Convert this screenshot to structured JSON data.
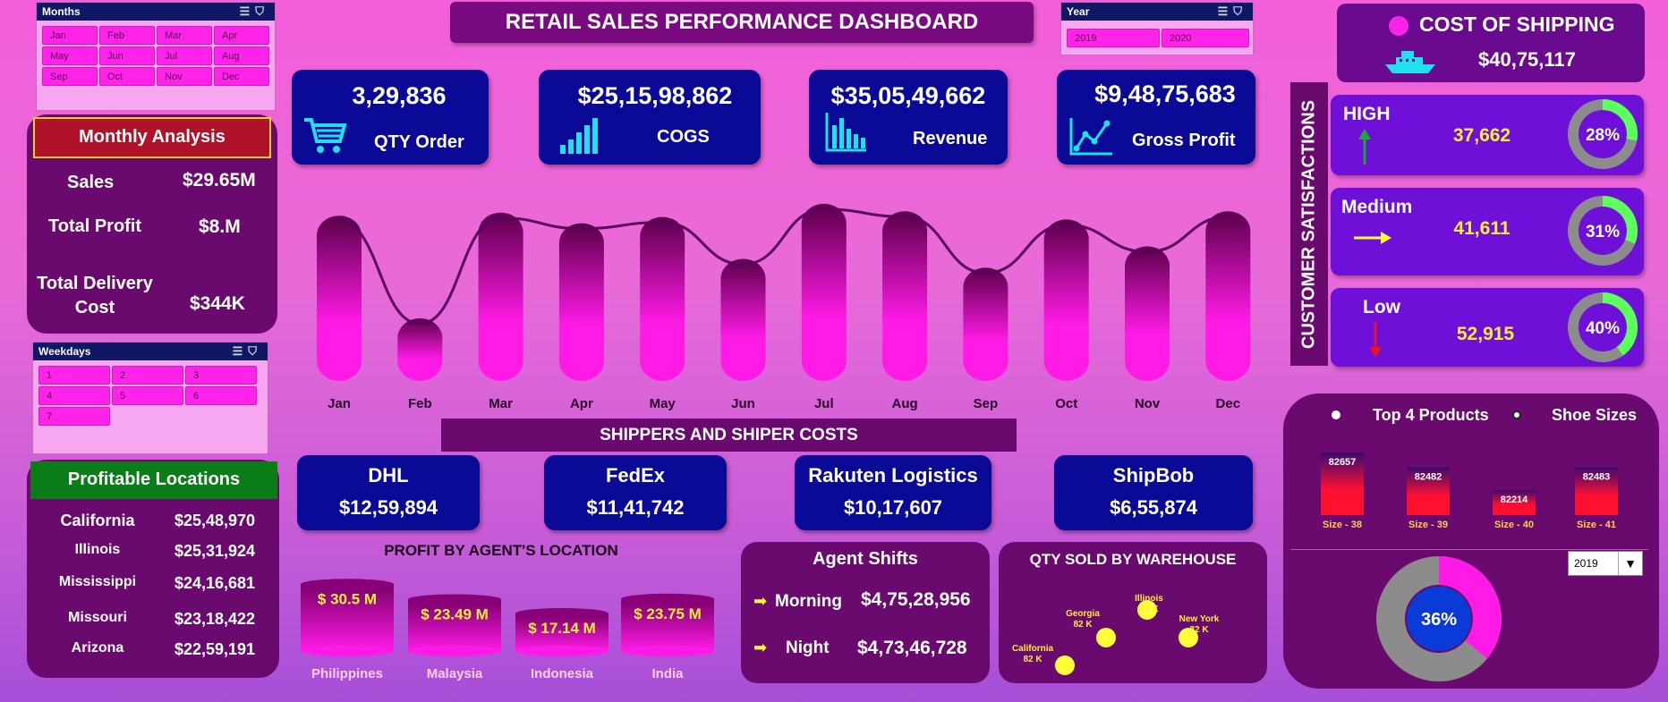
{
  "title": "RETAIL SALES PERFORMANCE DASHBOARD",
  "months_slicer": {
    "title": "Months",
    "items": [
      "Jan",
      "Feb",
      "Mar",
      "Apr",
      "May",
      "Jun",
      "Jul",
      "Aug",
      "Sep",
      "Oct",
      "Nov",
      "Dec"
    ]
  },
  "year_slicer": {
    "title": "Year",
    "items": [
      "2019",
      "2020"
    ]
  },
  "weekdays_slicer": {
    "title": "Weekdays",
    "items": [
      "1",
      "2",
      "3",
      "4",
      "5",
      "6",
      "7"
    ]
  },
  "monthly_analysis": {
    "title": "Monthly Analysis",
    "rows": [
      {
        "label": "Sales",
        "value": "$29.65M"
      },
      {
        "label": "Total Profit",
        "value": "$8.M"
      },
      {
        "label": "Total Delivery Cost",
        "value": "$344K"
      }
    ]
  },
  "profitable_locations": {
    "title": "Profitable Locations",
    "rows": [
      {
        "label": "California",
        "value": "$25,48,970"
      },
      {
        "label": "Illinois",
        "value": "$25,31,924"
      },
      {
        "label": "Mississippi",
        "value": "$24,16,681"
      },
      {
        "label": "Missouri",
        "value": "$23,18,422"
      },
      {
        "label": "Arizona",
        "value": "$22,59,191"
      }
    ]
  },
  "kpis": [
    {
      "value": "3,29,836",
      "label": "QTY Order",
      "icon": "cart-icon"
    },
    {
      "value": "$25,15,98,862",
      "label": "COGS",
      "icon": "signal-bars-icon"
    },
    {
      "value": "$35,05,49,662",
      "label": "Revenue",
      "icon": "bar-chart-icon"
    },
    {
      "value": "$9,48,75,683",
      "label": "Gross Profit",
      "icon": "line-chart-icon"
    }
  ],
  "shipping": {
    "title": "COST OF SHIPPING",
    "value": "$40,75,117",
    "icon": "ship-icon"
  },
  "satisfaction": {
    "title": "CUSTOMER SATISFACTIONS",
    "items": [
      {
        "label": "HIGH",
        "value": "37,662",
        "pct": 28,
        "pct_label": "28%",
        "arrow": "up-arrow-icon",
        "color": "#1fa33a"
      },
      {
        "label": "Medium",
        "value": "41,611",
        "pct": 31,
        "pct_label": "31%",
        "arrow": "right-arrow-icon",
        "color": "#ffff3a"
      },
      {
        "label": "Low",
        "value": "52,915",
        "pct": 40,
        "pct_label": "40%",
        "arrow": "down-arrow-icon",
        "color": "#e8122a"
      }
    ]
  },
  "shippers_title": "SHIPPERS AND SHIPER COSTS",
  "shippers": [
    {
      "name": "DHL",
      "value": "$12,59,894"
    },
    {
      "name": "FedEx",
      "value": "$11,41,742"
    },
    {
      "name": "Rakuten Logistics",
      "value": "$10,17,607"
    },
    {
      "name": "ShipBob",
      "value": "$6,55,874"
    }
  ],
  "agent_shifts": {
    "title": "Agent Shifts",
    "rows": [
      {
        "label": "Morning",
        "value": "$4,75,28,956"
      },
      {
        "label": "Night",
        "value": "$4,73,46,728"
      }
    ]
  },
  "top_products": {
    "legend": [
      "Top 4 Products",
      "Shoe Sizes"
    ],
    "year_select": "2019",
    "donut_pct": 36,
    "donut_label": "36%"
  },
  "colors": {
    "accent": "#ff22e8",
    "navy": "#0a0a96",
    "panel": "#6a0a6e",
    "yellow": "#ffff3a"
  },
  "chart_data": [
    {
      "type": "bar",
      "title": "",
      "categories": [
        "Jan",
        "Feb",
        "Mar",
        "Apr",
        "May",
        "Jun",
        "Jul",
        "Aug",
        "Sep",
        "Oct",
        "Nov",
        "Dec"
      ],
      "values": [
        2.64,
        1.0,
        2.69,
        2.52,
        2.62,
        1.95,
        2.83,
        2.71,
        1.81,
        2.58,
        2.15,
        2.71
      ],
      "line_overlay": true,
      "ylim": [
        0,
        3
      ]
    },
    {
      "type": "bar",
      "title": "PROFIT BY AGENT'S LOCATION",
      "categories": [
        "Philippines",
        "Malaysia",
        "Indonesia",
        "India"
      ],
      "values": [
        30.5,
        23.49,
        17.14,
        23.75
      ],
      "data_labels": [
        "$ 30.5 M",
        "$ 23.49 M",
        "$ 17.14 M",
        "$ 23.75 M"
      ]
    },
    {
      "type": "scatter",
      "title": "QTY SOLD BY WAREHOUSE",
      "points": [
        {
          "name": "California",
          "label": "82 K",
          "x": 1,
          "y": 1
        },
        {
          "name": "Georgia",
          "label": "82 K",
          "x": 2,
          "y": 2
        },
        {
          "name": "Illinois",
          "label": "83 K",
          "x": 3,
          "y": 3
        },
        {
          "name": "New York",
          "label": "82 K",
          "x": 4,
          "y": 2
        }
      ]
    },
    {
      "type": "bar",
      "title": "",
      "categories": [
        "Size - 38",
        "Size - 39",
        "Size - 40",
        "Size - 41"
      ],
      "values": [
        82657,
        82482,
        82214,
        82483
      ],
      "ylim": [
        82000,
        82700
      ]
    }
  ]
}
